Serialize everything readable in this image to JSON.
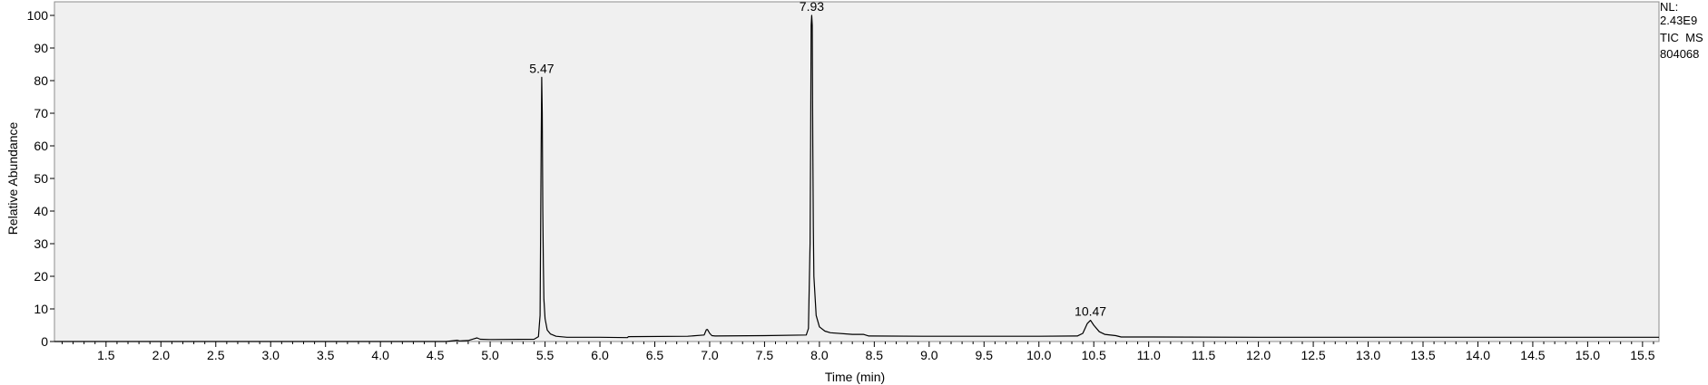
{
  "chart_data": {
    "type": "line",
    "title": "",
    "xlabel": "Time (min)",
    "ylabel": "Relative Abundance",
    "xlim": [
      1.03,
      15.65
    ],
    "ylim": [
      0,
      100
    ],
    "x_ticks": [
      "1.5",
      "2.0",
      "2.5",
      "3.0",
      "3.5",
      "4.0",
      "4.5",
      "5.0",
      "5.5",
      "6.0",
      "6.5",
      "7.0",
      "7.5",
      "8.0",
      "8.5",
      "9.0",
      "9.5",
      "10.0",
      "10.5",
      "11.0",
      "11.5",
      "12.0",
      "12.5",
      "13.0",
      "13.5",
      "14.0",
      "14.5",
      "15.0",
      "15.5"
    ],
    "y_ticks": [
      "0",
      "10",
      "20",
      "30",
      "40",
      "50",
      "60",
      "70",
      "80",
      "90",
      "100"
    ],
    "grid": false,
    "info": [
      "NL:",
      "2.43E9",
      "TIC  MS",
      "804068"
    ],
    "peak_labels": [
      {
        "x": 5.47,
        "y": 81,
        "text": "5.47"
      },
      {
        "x": 7.93,
        "y": 100,
        "text": "7.93"
      },
      {
        "x": 10.47,
        "y": 6.5,
        "text": "10.47"
      }
    ],
    "series": [
      {
        "x": [
          1.03,
          4.6,
          4.7,
          4.72,
          4.8,
          4.85,
          4.88,
          4.91,
          5.0,
          5.4,
          5.44,
          5.455,
          5.465,
          5.47,
          5.475,
          5.48,
          5.485,
          5.49,
          5.5,
          5.52,
          5.55,
          5.6,
          5.7,
          6.0,
          6.25,
          6.26,
          6.8,
          6.95,
          6.97,
          6.98,
          7.0,
          7.02,
          7.05,
          7.5,
          7.88,
          7.9,
          7.915,
          7.92,
          7.925,
          7.93,
          7.935,
          7.94,
          7.945,
          7.95,
          7.97,
          8.0,
          8.05,
          8.1,
          8.3,
          8.4,
          8.45,
          9.0,
          10.0,
          10.35,
          10.4,
          10.44,
          10.47,
          10.5,
          10.55,
          10.6,
          10.7,
          10.75,
          11.0,
          12.0,
          15.65
        ],
        "y": [
          0,
          0,
          0.4,
          0.2,
          0.3,
          0.8,
          1.1,
          0.7,
          0.6,
          0.7,
          1.5,
          8,
          60,
          81,
          70,
          40,
          24,
          13,
          7,
          3.5,
          2.3,
          1.6,
          1.3,
          1.3,
          1.2,
          1.5,
          1.6,
          2.0,
          3.6,
          3.7,
          2.5,
          1.8,
          1.7,
          1.8,
          2.0,
          4,
          30,
          60,
          97,
          100,
          97,
          60,
          35,
          20,
          8,
          4.5,
          3.2,
          2.7,
          2.2,
          2.2,
          1.7,
          1.6,
          1.6,
          1.7,
          2.5,
          5.5,
          6.5,
          5.0,
          3.0,
          2.2,
          1.8,
          1.4,
          1.4,
          1.3,
          1.3
        ]
      }
    ]
  }
}
